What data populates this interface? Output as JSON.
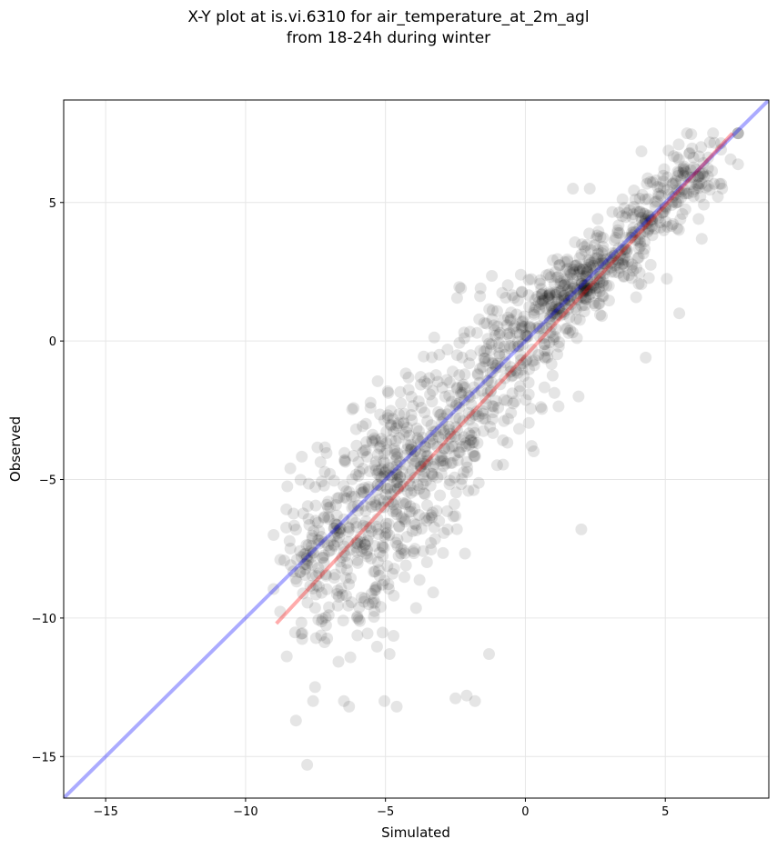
{
  "title": {
    "line1": "X-Y plot at is.vi.6310 for air_temperature_at_2m_agl",
    "line2": "from 18-24h during winter"
  },
  "chart_data": {
    "type": "scatter",
    "title": "X-Y plot at is.vi.6310 for air_temperature_at_2m_agl\nfrom 18-24h during winter",
    "xlabel": "Simulated",
    "ylabel": "Observed",
    "xlim": [
      -16.5,
      8.7
    ],
    "ylim": [
      -16.5,
      8.7
    ],
    "xticks": [
      -15,
      -10,
      -5,
      0,
      5
    ],
    "yticks": [
      -15,
      -10,
      -5,
      0,
      5
    ],
    "xtick_labels": [
      "−15",
      "−10",
      "−5",
      "0",
      "5"
    ],
    "ytick_labels": [
      "−15",
      "−10",
      "−5",
      "0",
      "5"
    ],
    "grid": true,
    "colors": {
      "points": "#000000",
      "identity_line": "#0000ff",
      "fit_line": "#ff0000",
      "grid": "#e6e6e6"
    },
    "series": [
      {
        "kind": "scatter",
        "cluster_model": [
          {
            "cx": 2.0,
            "cy": 2.0,
            "sx": 1.3,
            "sy": 1.2,
            "rho": 0.75,
            "n": 340
          },
          {
            "cx": 5.2,
            "cy": 5.2,
            "sx": 1.0,
            "sy": 1.0,
            "rho": 0.7,
            "n": 180
          },
          {
            "cx": -0.8,
            "cy": -0.8,
            "sx": 1.2,
            "sy": 1.8,
            "rho": 0.55,
            "n": 200
          },
          {
            "cx": -3.8,
            "cy": -3.5,
            "sx": 1.6,
            "sy": 1.5,
            "rho": 0.5,
            "n": 260
          },
          {
            "cx": -5.2,
            "cy": -7.2,
            "sx": 1.6,
            "sy": 2.1,
            "rho": 0.55,
            "n": 300
          },
          {
            "cx": -7.5,
            "cy": -7.6,
            "sx": 0.8,
            "sy": 1.4,
            "rho": 0.4,
            "n": 90
          }
        ],
        "outliers": [
          {
            "x": -7.8,
            "y": -15.3
          },
          {
            "x": -8.2,
            "y": -13.7
          },
          {
            "x": 5.5,
            "y": 1.0
          },
          {
            "x": 4.3,
            "y": -0.6
          },
          {
            "x": 2.0,
            "y": -6.8
          },
          {
            "x": -2.3,
            "y": 1.9
          },
          {
            "x": -1.6,
            "y": 1.9
          },
          {
            "x": 1.7,
            "y": 5.5
          },
          {
            "x": 2.3,
            "y": 5.5
          },
          {
            "x": -1.8,
            "y": -13.0
          },
          {
            "x": -2.5,
            "y": -12.9
          },
          {
            "x": -2.1,
            "y": -12.8
          },
          {
            "x": -4.6,
            "y": -13.2
          },
          {
            "x": -6.3,
            "y": -13.2
          },
          {
            "x": -1.3,
            "y": -11.3
          },
          {
            "x": -9.0,
            "y": -7.0
          },
          {
            "x": -8.4,
            "y": -4.6
          },
          {
            "x": 1.9,
            "y": -2.0
          }
        ]
      },
      {
        "kind": "line",
        "name": "",
        "points": [
          [
            -16.5,
            -16.5
          ],
          [
            8.7,
            8.7
          ]
        ]
      },
      {
        "kind": "line",
        "name": "",
        "points": [
          [
            -8.9,
            -10.2
          ],
          [
            7.4,
            7.5
          ]
        ]
      }
    ]
  }
}
